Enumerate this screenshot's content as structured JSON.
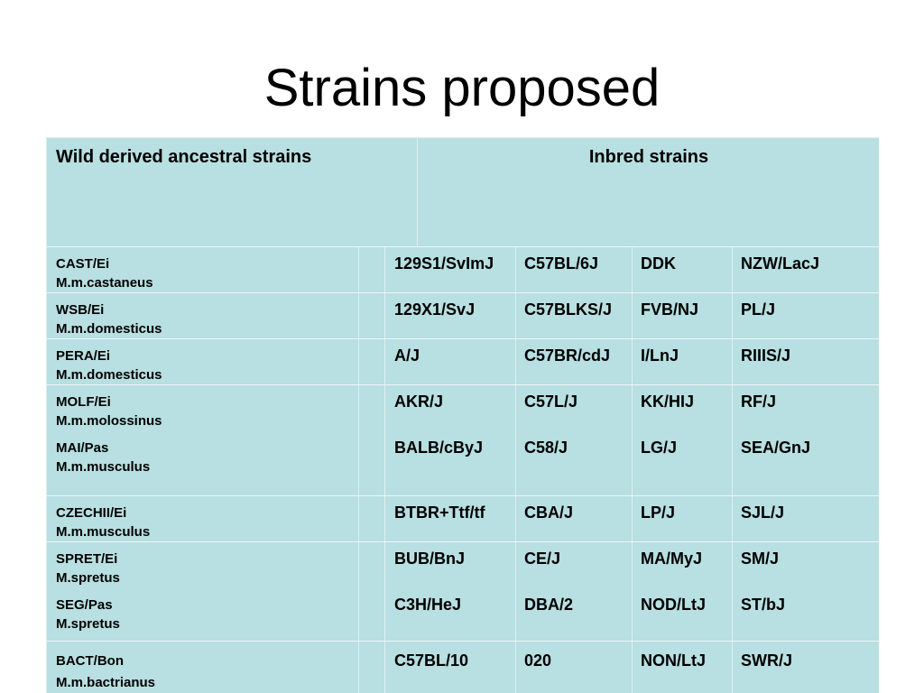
{
  "slide": {
    "title": "Strains proposed"
  },
  "table": {
    "header": {
      "wild": "Wild derived ancestral strains",
      "inbred": "Inbred strains"
    },
    "rows": [
      {
        "wild": [
          [
            "CAST/Ei",
            "M.m.castaneus"
          ]
        ],
        "inbred": [
          [
            "129S1/SvImJ",
            "C57BL/6J",
            "DDK",
            "NZW/LacJ"
          ]
        ]
      },
      {
        "wild": [
          [
            "WSB/Ei",
            "M.m.domesticus"
          ]
        ],
        "inbred": [
          [
            "129X1/SvJ",
            "C57BLKS/J",
            "FVB/NJ",
            "PL/J"
          ]
        ]
      },
      {
        "wild": [
          [
            "PERA/Ei",
            "M.m.domesticus"
          ]
        ],
        "inbred": [
          [
            "A/J",
            "C57BR/cdJ",
            "I/LnJ",
            "RIIIS/J"
          ]
        ]
      },
      {
        "wild": [
          [
            "MOLF/Ei",
            "M.m.molossinus"
          ],
          [
            "MAI/Pas",
            "M.m.musculus"
          ]
        ],
        "inbred": [
          [
            "AKR/J",
            "C57L/J",
            "KK/HIJ",
            "RF/J"
          ],
          [
            "BALB/cByJ",
            "C58/J",
            "LG/J",
            "SEA/GnJ"
          ]
        ]
      },
      {
        "wild": [
          [
            "CZECHII/Ei",
            "M.m.musculus"
          ]
        ],
        "inbred": [
          [
            "BTBR+Ttf/tf",
            "CBA/J",
            "LP/J",
            "SJL/J"
          ]
        ]
      },
      {
        "wild": [
          [
            "SPRET/Ei",
            "M.spretus"
          ],
          [
            "SEG/Pas",
            "M.spretus"
          ]
        ],
        "inbred": [
          [
            "BUB/BnJ",
            "CE/J",
            "MA/MyJ",
            "SM/J"
          ],
          [
            "C3H/HeJ",
            "DBA/2",
            "NOD/LtJ",
            "ST/bJ"
          ]
        ]
      },
      {
        "wild": [
          [
            "BACT/Bon",
            "M.m.bactrianus"
          ]
        ],
        "inbred": [
          [
            "C57BL/10",
            "020",
            "NON/LtJ",
            "SWR/J"
          ]
        ]
      }
    ]
  }
}
